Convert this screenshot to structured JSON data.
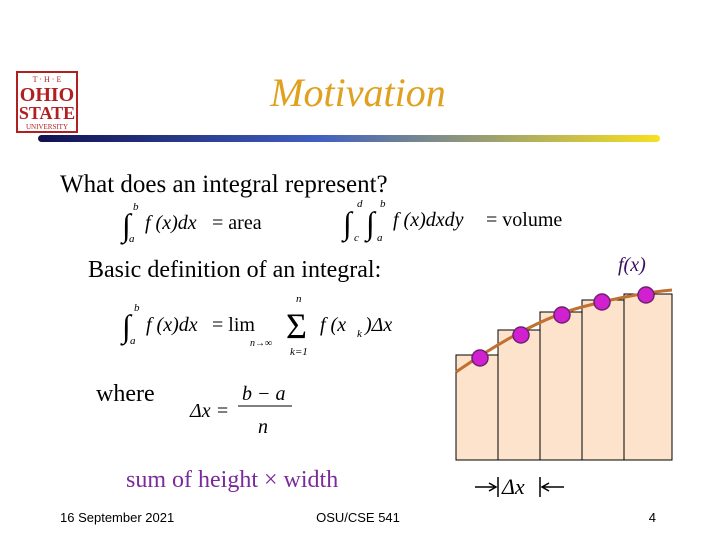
{
  "logo": {
    "top": "T · H · E",
    "line1": "OHIO",
    "line2": "STATE",
    "bottom": "UNIVERSITY"
  },
  "title": "Motivation",
  "body": {
    "question": "What does an integral represent?",
    "formula_area": {
      "integral": "∫",
      "upper": "b",
      "lower": "a",
      "integrand": "f (x)dx",
      "result": "= area"
    },
    "formula_volume": {
      "integral": "∫",
      "upper1": "d",
      "lower1": "c",
      "upper2": "b",
      "lower2": "a",
      "integrand": "f (x)dxdy",
      "result": "= volume"
    },
    "definition": "Basic definition of an integral:",
    "formula_definition": {
      "integral": "∫",
      "upper": "b",
      "lower": "a",
      "integrand": "f (x)dx",
      "lim": "= lim",
      "limit": "n→∞",
      "sum": "Σ",
      "sum_upper": "n",
      "sum_lower": "k=1",
      "term": "f (x",
      "term_sub": "k",
      "term_end": ")Δx"
    },
    "where": "where",
    "formula_dx": {
      "lhs": "Δx =",
      "numerator": "b − a",
      "denominator": "n"
    },
    "summary": "sum of height × width"
  },
  "figure": {
    "function_label": "f(x)",
    "width_label": "Δx"
  },
  "footer": {
    "date": "16 September 2021",
    "course": "OSU/CSE 541",
    "page": "4"
  }
}
